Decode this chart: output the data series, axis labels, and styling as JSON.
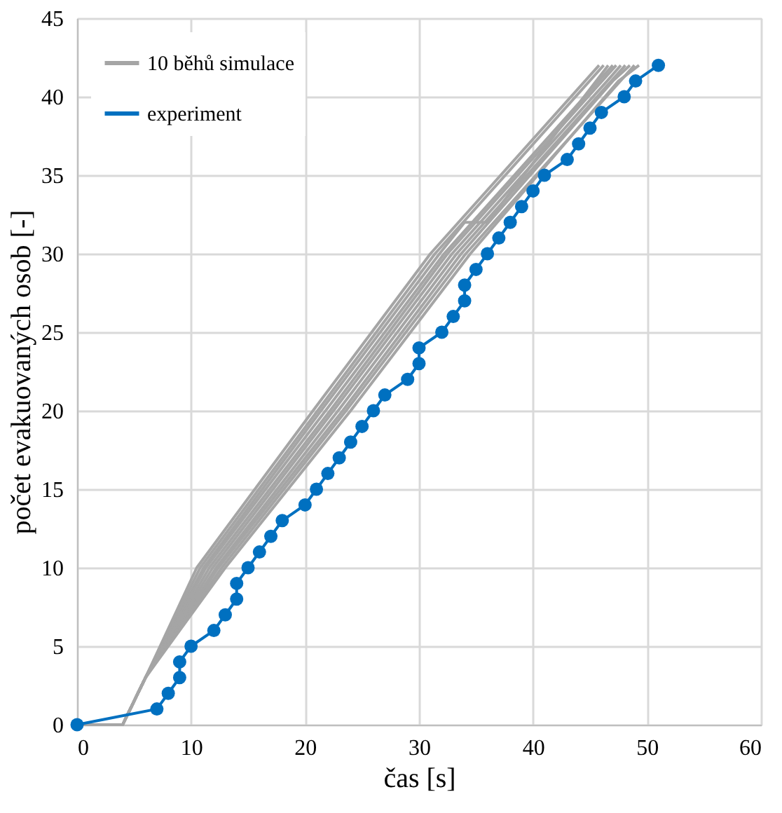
{
  "chart_data": {
    "type": "line",
    "xlabel": "čas [s]",
    "ylabel": "počet evakuovaných osob [-]",
    "xlim": [
      0,
      60
    ],
    "xticks": [
      0,
      10,
      20,
      30,
      40,
      50,
      60
    ],
    "ylim": [
      0,
      45
    ],
    "yticks": [
      0,
      5,
      10,
      15,
      20,
      25,
      30,
      35,
      40,
      45
    ],
    "grid": true,
    "legend": "top left",
    "series": [
      {
        "name": "10 běhů simulace",
        "color": "#a5a5a5",
        "marker": "none",
        "x": [
          0,
          4,
          6,
          10.5,
          20.7,
          31,
          45.8
        ],
        "values": [
          0,
          0,
          3,
          10,
          20,
          30,
          42
        ]
      },
      {
        "color": "#a5a5a5",
        "marker": "none",
        "x": [
          0,
          4,
          6,
          10.8,
          21.1,
          31.4,
          46.2
        ],
        "values": [
          0,
          0,
          3,
          10,
          20,
          30,
          42
        ]
      },
      {
        "color": "#a5a5a5",
        "marker": "none",
        "x": [
          0,
          4,
          6,
          11.1,
          21.4,
          31.8,
          34,
          36,
          46.6
        ],
        "values": [
          0,
          0,
          3,
          10,
          20,
          30,
          32,
          32,
          42
        ]
      },
      {
        "color": "#a5a5a5",
        "marker": "none",
        "x": [
          0,
          4,
          6,
          11.3,
          21.8,
          32.2,
          47
        ],
        "values": [
          0,
          0,
          3,
          10,
          20,
          30,
          42
        ]
      },
      {
        "color": "#a5a5a5",
        "marker": "none",
        "x": [
          0,
          4,
          6,
          11.6,
          22.2,
          32.5,
          47.3
        ],
        "values": [
          0,
          0,
          3,
          10,
          20,
          30,
          42
        ]
      },
      {
        "color": "#a5a5a5",
        "marker": "none",
        "x": [
          0,
          4,
          6,
          11.9,
          22.5,
          32.9,
          46.5,
          47.7
        ],
        "values": [
          0,
          0,
          3,
          10,
          20,
          30,
          41,
          42
        ]
      },
      {
        "color": "#a5a5a5",
        "marker": "none",
        "x": [
          0,
          4,
          6,
          12.2,
          22.9,
          33.3,
          48.1
        ],
        "values": [
          0,
          0,
          3,
          10,
          20,
          30,
          42
        ]
      },
      {
        "color": "#a5a5a5",
        "marker": "none",
        "x": [
          0,
          4,
          6,
          12.4,
          23.3,
          33.7,
          47,
          48.5
        ],
        "values": [
          0,
          0,
          3,
          10,
          20,
          30,
          41,
          42
        ]
      },
      {
        "color": "#a5a5a5",
        "marker": "none",
        "x": [
          0,
          4,
          6,
          12.7,
          23.6,
          34.1,
          48.9
        ],
        "values": [
          0,
          0,
          3,
          10,
          20,
          30,
          42
        ]
      },
      {
        "color": "#a5a5a5",
        "marker": "none",
        "x": [
          0,
          4,
          6,
          13,
          24,
          34.5,
          47.5,
          49.3
        ],
        "values": [
          0,
          0,
          3,
          10,
          20,
          30,
          41,
          42
        ]
      },
      {
        "name": "experiment",
        "color": "#0070c0",
        "marker": "circle",
        "x": [
          0,
          7,
          8,
          9,
          9,
          10,
          12,
          13,
          14,
          14,
          15,
          16,
          17,
          18,
          20,
          21,
          22,
          23,
          24,
          25,
          26,
          27,
          29,
          30,
          30,
          32,
          33,
          34,
          34,
          35,
          36,
          37,
          38,
          39,
          40,
          41,
          43,
          44,
          45,
          46,
          48,
          49,
          51
        ],
        "values": [
          0,
          1,
          2,
          3,
          4,
          5,
          6,
          7,
          8,
          9,
          10,
          11,
          12,
          13,
          14,
          15,
          16,
          17,
          18,
          19,
          20,
          21,
          22,
          23,
          24,
          25,
          26,
          27,
          28,
          29,
          30,
          31,
          32,
          33,
          34,
          35,
          36,
          37,
          38,
          39,
          40,
          41,
          42
        ]
      }
    ]
  }
}
